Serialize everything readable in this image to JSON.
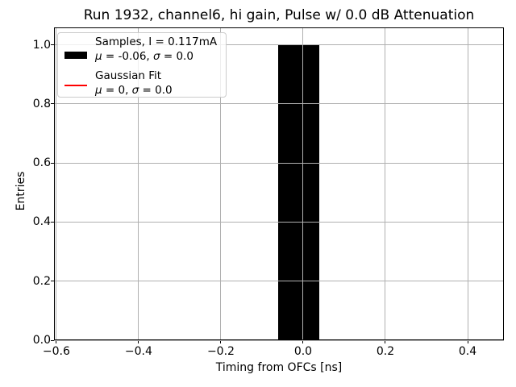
{
  "chart_data": {
    "type": "bar",
    "title": "Run 1932, channel6, hi gain, Pulse w/ 0.0 dB Attenuation",
    "xlabel": "Timing from OFCs [ns]",
    "ylabel": "Entries",
    "xlim": [
      -0.6057,
      0.4882
    ],
    "ylim": [
      0,
      1.0589
    ],
    "grid": true,
    "xticks": [
      {
        "v": -0.6,
        "label": "−0.6"
      },
      {
        "v": -0.4,
        "label": "−0.4"
      },
      {
        "v": -0.2,
        "label": "−0.2"
      },
      {
        "v": 0.0,
        "label": "0.0"
      },
      {
        "v": 0.2,
        "label": "0.2"
      },
      {
        "v": 0.4,
        "label": "0.4"
      }
    ],
    "yticks": [
      {
        "v": 0.0,
        "label": "0.0"
      },
      {
        "v": 0.2,
        "label": "0.2"
      },
      {
        "v": 0.4,
        "label": "0.4"
      },
      {
        "v": 0.6,
        "label": "0.6"
      },
      {
        "v": 0.8,
        "label": "0.8"
      },
      {
        "v": 1.0,
        "label": "1.0"
      }
    ],
    "bars": [
      {
        "x_left": -0.06,
        "x_right": 0.04,
        "height": 1.0
      }
    ],
    "legend": {
      "location": "upper left",
      "entries": [
        {
          "swatch": "thick-bar",
          "color": "#000000",
          "line1": "Samples, I = 0.117mA",
          "line2": "μ = -0.06, σ = 0.0"
        },
        {
          "swatch": "thin-line",
          "color": "#ff0000",
          "line1": "Gaussian Fit",
          "line2": "μ = 0, σ = 0.0"
        }
      ]
    },
    "colors": {
      "bar": "#000000",
      "grid": "#b0b0b0",
      "spine": "#000000",
      "gaussian_fit": "#ff0000",
      "legend_border": "#cccccc",
      "text": "#000000",
      "background": "#ffffff"
    }
  }
}
